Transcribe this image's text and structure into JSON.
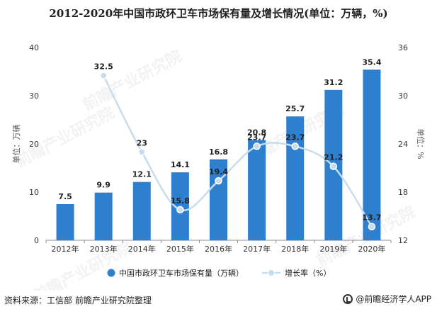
{
  "title": "2012-2020年中国市政环卫车市场保有量及增长情况(单位：万辆，%)",
  "source": "资料来源：工信部 前瞻产业研究院整理",
  "brand": "@前瞻经济学人APP",
  "watermark": "前瞻产业研究院",
  "colors": {
    "bar": "#2f7fcf",
    "line": "#c6dcef",
    "dot": "#c6dcef",
    "axis": "#8c8c8c",
    "text": "#333333",
    "label": "#222222"
  },
  "chart_data": {
    "type": "bar",
    "categories": [
      "2012年",
      "2013年",
      "2014年",
      "2015年",
      "2016年",
      "2017年",
      "2018年",
      "2019年",
      "2020年"
    ],
    "series": [
      {
        "name": "中国市政环卫车市场保有量（万辆）",
        "type": "bar",
        "axis": "left",
        "values": [
          7.5,
          9.9,
          12.1,
          14.1,
          16.8,
          20.8,
          25.7,
          31.2,
          35.4
        ]
      },
      {
        "name": "增长率（%）",
        "type": "line",
        "axis": "right",
        "values": [
          null,
          32.5,
          23,
          15.8,
          19.4,
          23.7,
          23.7,
          21.2,
          13.7
        ]
      }
    ],
    "ylabel": "单位：万辆",
    "y2label": "单位：%",
    "ylim": [
      0,
      40
    ],
    "y2lim": [
      12,
      36
    ],
    "yticks": [
      0,
      10,
      20,
      30,
      40
    ],
    "y2ticks": [
      12,
      18,
      24,
      30,
      36
    ],
    "legend_position": "bottom"
  }
}
